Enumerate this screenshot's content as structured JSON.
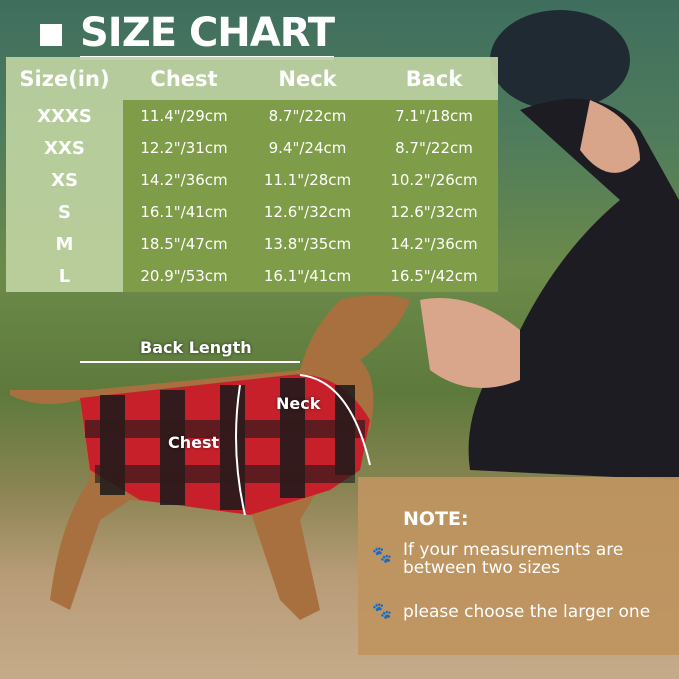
{
  "title": "SIZE CHART",
  "table": {
    "headers": [
      "Size(in)",
      "Chest",
      "Neck",
      "Back"
    ],
    "rows": [
      [
        "XXXS",
        "11.4\"/29cm",
        "8.7\"/22cm",
        "7.1\"/18cm"
      ],
      [
        "XXS",
        "12.2\"/31cm",
        "9.4\"/24cm",
        "8.7\"/22cm"
      ],
      [
        "XS",
        "14.2\"/36cm",
        "11.1\"/28cm",
        "10.2\"/26cm"
      ],
      [
        "S",
        "16.1\"/41cm",
        "12.6\"/32cm",
        "12.6\"/32cm"
      ],
      [
        "M",
        "18.5\"/47cm",
        "13.8\"/35cm",
        "14.2\"/36cm"
      ],
      [
        "L",
        "20.9\"/53cm",
        "16.1\"/41cm",
        "16.5\"/42cm"
      ]
    ]
  },
  "diagram": {
    "back_label": "Back Length",
    "neck_label": "Neck",
    "chest_label": "Chest"
  },
  "note": {
    "heading": "NOTE:",
    "items": [
      "If your measurements are between two sizes",
      "please choose the larger one"
    ],
    "bullet_icon": "paw-icon"
  },
  "colors": {
    "header": "#bed2a0",
    "body": "#7f9c48",
    "note": "#be9460",
    "plaid_red": "#c8202a"
  }
}
